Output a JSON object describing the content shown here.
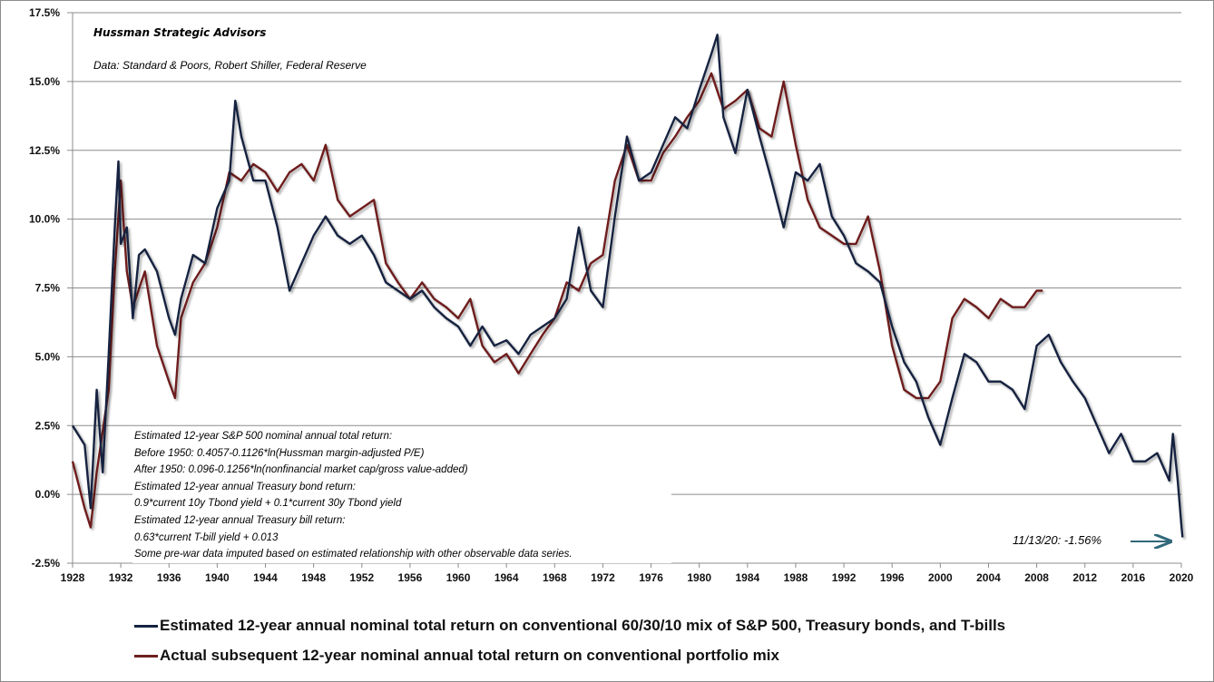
{
  "header": {
    "source_org": "Hussman Strategic Advisors",
    "data_source": "Data: Standard & Poors, Robert Shiller, Federal Reserve"
  },
  "notes": [
    "Estimated 12-year S&P 500  nominal annual total return:",
    "Before 1950:  0.4057-0.1126*ln(Hussman  margin-adjusted P/E)",
    "After 1950:  0.096-0.1256*ln(nonfinancial market cap/gross value-added)",
    "Estimated 12-year annual Treasury bond return:",
    "0.9*current 10y Tbond yield + 0.1*current  30y Tbond yield",
    "Estimated 12-year annual Treasury bill return:",
    "0.63*current  T-bill yield + 0.013",
    "Some pre-war data imputed based on estimated relationship with other observable data series."
  ],
  "callout": "11/13/20: -1.56%",
  "colors": {
    "estimated": "#14233f",
    "actual": "#6e1f1f",
    "grid": "#8c8c8c",
    "arrow": "#31687a"
  },
  "chart_data": {
    "type": "line",
    "title": "",
    "xlabel": "",
    "ylabel": "",
    "xlim": [
      1928,
      2020
    ],
    "ylim": [
      -2.5,
      17.5
    ],
    "grid": true,
    "legend_position": "bottom",
    "y_ticks": [
      "17.5%",
      "15.0%",
      "12.5%",
      "10.0%",
      "7.5%",
      "5.0%",
      "2.5%",
      "0.0%",
      "-2.5%"
    ],
    "y_tick_values": [
      17.5,
      15,
      12.5,
      10,
      7.5,
      5,
      2.5,
      0,
      -2.5
    ],
    "x_ticks": [
      "1928",
      "1932",
      "1936",
      "1940",
      "1944",
      "1948",
      "1952",
      "1956",
      "1960",
      "1964",
      "1968",
      "1972",
      "1976",
      "1980",
      "1984",
      "1988",
      "1992",
      "1996",
      "2000",
      "2004",
      "2008",
      "2012",
      "2016",
      "2020"
    ],
    "series": [
      {
        "name": "Estimated 12-year annual nominal total return on conventional 60/30/10 mix of S&P 500, Treasury bonds, and T-bills",
        "x": [
          1928,
          1929,
          1929.5,
          1930,
          1930.5,
          1931,
          1931.5,
          1931.8,
          1932,
          1932.5,
          1933,
          1933.5,
          1934,
          1935,
          1936,
          1936.5,
          1937,
          1938,
          1939,
          1940,
          1941,
          1941.5,
          1942,
          1943,
          1944,
          1945,
          1946,
          1947,
          1948,
          1949,
          1950,
          1951,
          1952,
          1953,
          1954,
          1955,
          1956,
          1957,
          1958,
          1959,
          1960,
          1961,
          1962,
          1963,
          1964,
          1965,
          1966,
          1967,
          1968,
          1969,
          1970,
          1971,
          1972,
          1973,
          1974,
          1975,
          1976,
          1977,
          1978,
          1979,
          1980,
          1981,
          1981.5,
          1982,
          1983,
          1984,
          1985,
          1986,
          1987,
          1988,
          1989,
          1990,
          1991,
          1992,
          1993,
          1994,
          1995,
          1996,
          1997,
          1998,
          1999,
          2000,
          2001,
          2002,
          2003,
          2004,
          2005,
          2006,
          2007,
          2008,
          2009,
          2010,
          2011,
          2012,
          2013,
          2014,
          2015,
          2016,
          2017,
          2018,
          2019,
          2019.3,
          2019.7,
          2020,
          2020.1
        ],
        "values": [
          2.5,
          1.8,
          -0.5,
          3.8,
          0.8,
          5.1,
          9.7,
          12.1,
          9.1,
          9.7,
          6.4,
          8.7,
          8.9,
          8.1,
          6.4,
          5.8,
          7.1,
          8.7,
          8.4,
          10.4,
          11.4,
          14.3,
          13.0,
          11.4,
          11.4,
          9.7,
          7.4,
          8.4,
          9.4,
          10.1,
          9.4,
          9.1,
          9.4,
          8.7,
          7.7,
          7.4,
          7.1,
          7.4,
          6.8,
          6.4,
          6.1,
          5.4,
          6.1,
          5.4,
          5.6,
          5.1,
          5.8,
          6.1,
          6.4,
          7.1,
          9.7,
          7.4,
          6.8,
          10.1,
          13.0,
          11.4,
          11.7,
          12.7,
          13.7,
          13.3,
          14.7,
          16.0,
          16.7,
          13.7,
          12.4,
          14.7,
          13.0,
          11.4,
          9.7,
          11.7,
          11.4,
          12.0,
          10.1,
          9.4,
          8.4,
          8.1,
          7.7,
          6.1,
          4.8,
          4.1,
          2.8,
          1.8,
          3.5,
          5.1,
          4.8,
          4.1,
          4.1,
          3.8,
          3.1,
          5.4,
          5.8,
          4.8,
          4.1,
          3.5,
          2.5,
          1.5,
          2.2,
          1.2,
          1.2,
          1.5,
          0.5,
          2.2,
          0.5,
          -1.1,
          -1.56
        ]
      },
      {
        "name": "Actual subsequent 12-year nominal annual total return on conventional portfolio mix",
        "x": [
          1928,
          1929,
          1929.5,
          1930,
          1931,
          1931.5,
          1932,
          1932.5,
          1933,
          1934,
          1935,
          1936,
          1936.5,
          1937,
          1938,
          1939,
          1940,
          1941,
          1942,
          1943,
          1944,
          1945,
          1946,
          1947,
          1948,
          1949,
          1950,
          1951,
          1952,
          1953,
          1954,
          1955,
          1956,
          1957,
          1958,
          1959,
          1960,
          1961,
          1962,
          1963,
          1964,
          1965,
          1966,
          1967,
          1968,
          1969,
          1970,
          1971,
          1972,
          1973,
          1974,
          1975,
          1976,
          1977,
          1978,
          1979,
          1980,
          1981,
          1982,
          1983,
          1984,
          1985,
          1986,
          1987,
          1988,
          1989,
          1990,
          1991,
          1992,
          1993,
          1994,
          1995,
          1996,
          1997,
          1998,
          1999,
          2000,
          2001,
          2002,
          2003,
          2004,
          2005,
          2006,
          2007,
          2008,
          2008.5
        ],
        "values": [
          1.2,
          -0.5,
          -1.2,
          0.8,
          3.8,
          8.1,
          11.4,
          8.1,
          6.8,
          8.1,
          5.4,
          4.1,
          3.5,
          6.4,
          7.7,
          8.4,
          9.7,
          11.7,
          11.4,
          12.0,
          11.7,
          11.0,
          11.7,
          12.0,
          11.4,
          12.7,
          10.7,
          10.1,
          10.4,
          10.7,
          8.4,
          7.7,
          7.1,
          7.7,
          7.1,
          6.8,
          6.4,
          7.1,
          5.4,
          4.8,
          5.1,
          4.4,
          5.1,
          5.8,
          6.4,
          7.7,
          7.4,
          8.4,
          8.7,
          11.4,
          12.7,
          11.4,
          11.4,
          12.4,
          13.0,
          13.7,
          14.3,
          15.3,
          14.0,
          14.3,
          14.7,
          13.3,
          13.0,
          15.0,
          12.7,
          10.7,
          9.7,
          9.4,
          9.1,
          9.1,
          10.1,
          8.1,
          5.4,
          3.8,
          3.5,
          3.5,
          4.1,
          6.4,
          7.1,
          6.8,
          6.4,
          7.1,
          6.8,
          6.8,
          7.4,
          7.4
        ]
      }
    ]
  }
}
